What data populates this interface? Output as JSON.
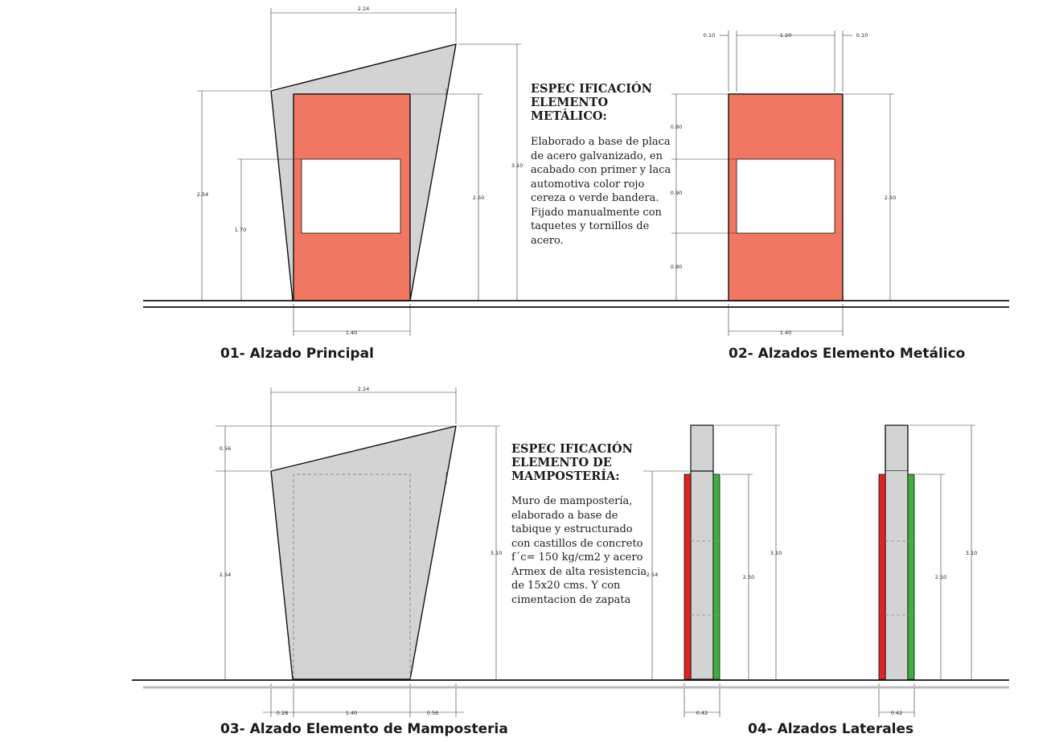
{
  "colors": {
    "sign_red": "#f07863",
    "masonry_gray": "#d3d3d3",
    "lateral_red": "#e02323",
    "lateral_green": "#3fae3f",
    "outline": "#111111"
  },
  "captions": {
    "c1": "01- Alzado Principal",
    "c2": "02- Alzados Elemento Metálico",
    "c3": "03- Alzado Elemento de Mamposteria",
    "c4": "04- Alzados Laterales"
  },
  "spec1": {
    "title": "ESPEC IFICACIÓN\nELEMENTO\nMETÁLICO:",
    "text": "Elaborado a base de placa\nde acero galvanizado, en\nacabado con primer y laca\nautomotiva color rojo\ncereza o verde bandera.\nFijado manualmente con\ntaquetes y tornillos de\nacero."
  },
  "spec2": {
    "title": "ESPEC IFICACIÓN\nELEMENTO DE\nMAMPOSTERÍA:",
    "text": "Muro de mampostería,\nelaborado a base de\ntabique y estructurado\ncon castillos de concreto\nf´c= 150 kg/cm2 y acero\nArmex de alta resistencia\nde 15x20 cms. Y con\ncimentacion de zapata"
  },
  "dims": {
    "d1_top": "2.24",
    "d1_left": "2.54",
    "d1_inner": "1.70",
    "d1_r1": "2.50",
    "d1_r2": "3.10",
    "d1_bottom": "1.40",
    "d2_top_l": "0.10",
    "d2_top_c": "1.20",
    "d2_top_r": "0.10",
    "d2_v1": "0.80",
    "d2_v2": "0.90",
    "d2_v3": "0.80",
    "d2_r": "2.50",
    "d2_bottom": "1.40",
    "d3_top": "2.24",
    "d3_l1": "0.56",
    "d3_l2": "2.54",
    "d3_r": "3.10",
    "d3_b1": "0.28",
    "d3_b2": "1.40",
    "d3_b3": "0.56",
    "d4a_left": "2.54",
    "d4a_mid": "2.50",
    "d4a_right": "3.10",
    "d4a_bottom": "0.42",
    "d4b_mid": "2.50",
    "d4b_right": "3.10",
    "d4b_bottom": "0.42"
  }
}
